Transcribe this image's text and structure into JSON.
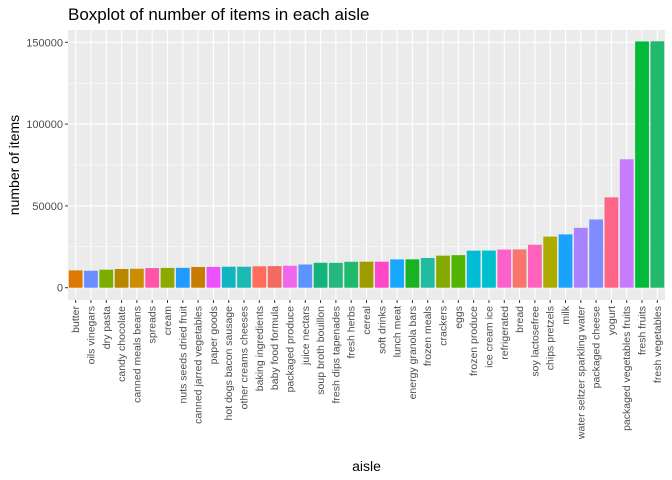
{
  "chart_data": {
    "type": "bar",
    "title": "Boxplot of number of items in each aisle",
    "xlabel": "aisle",
    "ylabel": "number of items",
    "ylim": [
      -7500,
      157500
    ],
    "yticks": [
      0,
      50000,
      100000,
      150000
    ],
    "ytick_labels": [
      "0",
      "50000",
      "100000",
      "150000"
    ],
    "grid": true,
    "legend": "none",
    "panel_color": "#ebebeb",
    "grid_color": "#ffffff",
    "categories": [
      "butter",
      "oils vinegars",
      "dry pasta",
      "candy chocolate",
      "canned meals beans",
      "spreads",
      "cream",
      "nuts seeds dried fruit",
      "canned jarred vegetables",
      "paper goods",
      "hot dogs bacon sausage",
      "other creams cheeses",
      "baking ingredients",
      "baby food formula",
      "packaged produce",
      "juice nectars",
      "soup broth bouillon",
      "fresh dips tapenades",
      "fresh herbs",
      "cereal",
      "soft drinks",
      "lunch meat",
      "energy granola bars",
      "frozen meals",
      "crackers",
      "eggs",
      "frozen produce",
      "ice cream ice",
      "refrigerated",
      "bread",
      "soy lactosefree",
      "chips pretzels",
      "milk",
      "water seltzer sparkling water",
      "packaged cheese",
      "yogurt",
      "packaged vegetables fruits",
      "fresh fruits",
      "fresh vegetables"
    ],
    "values": [
      10575,
      10400,
      11000,
      11450,
      11600,
      12000,
      12100,
      12150,
      12650,
      12700,
      12850,
      12850,
      13100,
      13200,
      13450,
      14200,
      15250,
      15200,
      15850,
      15900,
      15900,
      17300,
      17350,
      18200,
      19600,
      19900,
      22650,
      22700,
      23300,
      23400,
      26250,
      31250,
      32600,
      36600,
      41700,
      55250,
      78500,
      150500,
      150600
    ],
    "colors": [
      "#de7800",
      "#6a8dff",
      "#7aad00",
      "#b98600",
      "#cc8d00",
      "#ff55a9",
      "#8fa800",
      "#1f9aff",
      "#c77b00",
      "#ea52ff",
      "#11b5bf",
      "#1cb8b4",
      "#ff6b5d",
      "#f26a62",
      "#ef67eb",
      "#5b94ff",
      "#13b47c",
      "#24b87f",
      "#1eb96a",
      "#9e9d00",
      "#ff48c9",
      "#18a7ff",
      "#1ab225",
      "#20bca2",
      "#84aa00",
      "#52b400",
      "#00bcd6",
      "#00bfcd",
      "#fc61c9",
      "#f8766d",
      "#ff62bc",
      "#abab00",
      "#1aa2ff",
      "#a982ff",
      "#7f8cff",
      "#ff6586",
      "#c77cff",
      "#00ba38",
      "#20b96d"
    ]
  }
}
